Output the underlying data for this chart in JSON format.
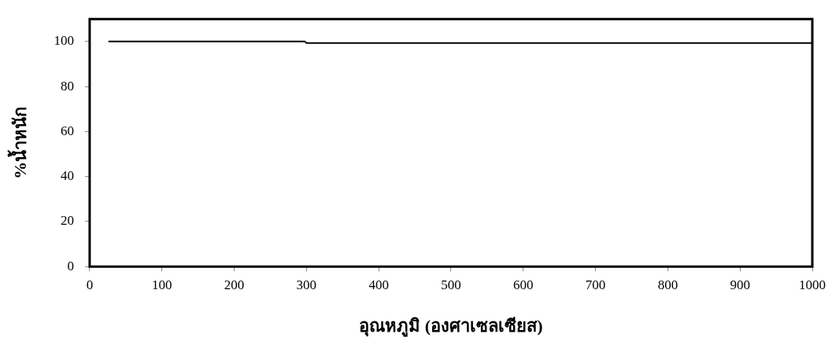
{
  "chart_data": {
    "type": "line",
    "xlabel": "อุณหภูมิ (องศาเซลเซียส)",
    "ylabel": "%น้ำหนัก",
    "series": [
      {
        "color": "#000000",
        "x": [
          26,
          298,
          300,
          1000
        ],
        "values": [
          100,
          100,
          99.3,
          99.3
        ]
      }
    ],
    "xlim": [
      0,
      1000
    ],
    "xticks": [
      0,
      100,
      200,
      300,
      400,
      500,
      600,
      700,
      800,
      900,
      1000
    ],
    "ylim": [
      0,
      110
    ],
    "yticks": [
      0,
      20,
      40,
      60,
      80,
      100
    ],
    "grid": false,
    "legend": false,
    "marker": "none",
    "line_style": "solid"
  }
}
